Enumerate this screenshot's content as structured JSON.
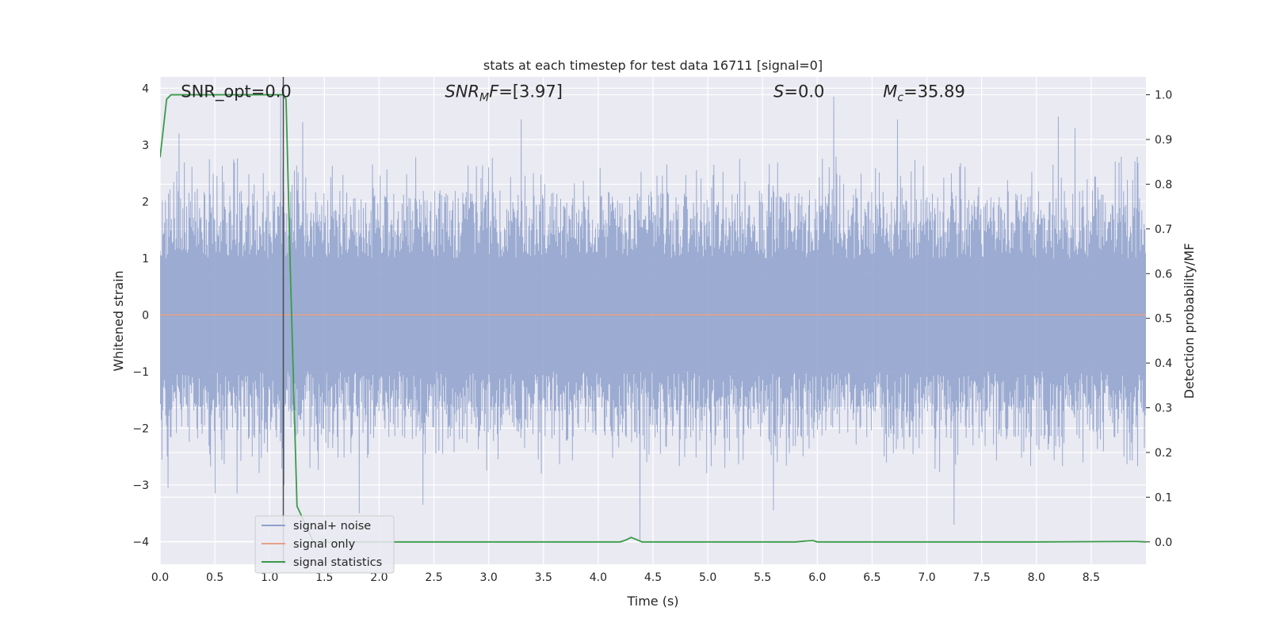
{
  "chart_data": {
    "type": "line",
    "title": "stats at each timestep for test data 16711 [signal=0]",
    "xlabel": "Time (s)",
    "ylabel": "Whitened strain",
    "y2label": "Detection probability/MF",
    "xlim": [
      0,
      9
    ],
    "ylim": [
      -4.4,
      4.2
    ],
    "y2lim": [
      -0.05,
      1.04
    ],
    "xticks": [
      0.0,
      0.5,
      1.0,
      1.5,
      2.0,
      2.5,
      3.0,
      3.5,
      4.0,
      4.5,
      5.0,
      5.5,
      6.0,
      6.5,
      7.0,
      7.5,
      8.0,
      8.5
    ],
    "xtick_labels": [
      "0.0",
      "0.5",
      "1.0",
      "1.5",
      "2.0",
      "2.5",
      "3.0",
      "3.5",
      "4.0",
      "4.5",
      "5.0",
      "5.5",
      "6.0",
      "6.5",
      "7.0",
      "7.5",
      "8.0",
      "8.5"
    ],
    "yticks": [
      -4,
      -3,
      -2,
      -1,
      0,
      1,
      2,
      3,
      4
    ],
    "ytick_labels": [
      "−4",
      "−3",
      "−2",
      "−1",
      "0",
      "1",
      "2",
      "3",
      "4"
    ],
    "y2ticks": [
      0.0,
      0.1,
      0.2,
      0.3,
      0.4,
      0.5,
      0.6,
      0.7,
      0.8,
      0.9,
      1.0
    ],
    "y2tick_labels": [
      "0.0",
      "0.1",
      "0.2",
      "0.3",
      "0.4",
      "0.5",
      "0.6",
      "0.7",
      "0.8",
      "0.9",
      "1.0"
    ],
    "grid": true,
    "legend_position": "lower-left",
    "series": [
      {
        "name": "signal+ noise",
        "axis": "left",
        "color": "#8da0cb",
        "kind": "noise",
        "n_samples": 2600,
        "typical_amplitude": [
          -1.7,
          1.65
        ],
        "peaks": [
          {
            "x": 0.07,
            "y": -3.05
          },
          {
            "x": 0.17,
            "y": 3.2
          },
          {
            "x": 0.5,
            "y": -3.15
          },
          {
            "x": 0.7,
            "y": -3.15
          },
          {
            "x": 1.1,
            "y": 3.9
          },
          {
            "x": 1.13,
            "y": -3.0
          },
          {
            "x": 1.3,
            "y": 3.4
          },
          {
            "x": 1.82,
            "y": -3.5
          },
          {
            "x": 2.4,
            "y": -3.35
          },
          {
            "x": 3.3,
            "y": 3.45
          },
          {
            "x": 4.38,
            "y": -4.0
          },
          {
            "x": 5.6,
            "y": -3.45
          },
          {
            "x": 6.15,
            "y": 3.85
          },
          {
            "x": 6.73,
            "y": 3.45
          },
          {
            "x": 7.25,
            "y": -3.7
          },
          {
            "x": 8.2,
            "y": 3.5
          },
          {
            "x": 8.35,
            "y": 3.3
          },
          {
            "x": 8.8,
            "y": -2.5
          }
        ]
      },
      {
        "name": "signal only",
        "axis": "left",
        "color": "#e5a088",
        "x": [
          0,
          9
        ],
        "y": [
          0,
          0
        ]
      },
      {
        "name": "signal statistics",
        "axis": "right",
        "color": "#3a9b49",
        "x": [
          0.0,
          0.06,
          0.1,
          0.3,
          0.6,
          0.9,
          1.1,
          1.12,
          1.15,
          1.19,
          1.25,
          1.4,
          2.0,
          3.0,
          4.2,
          4.25,
          4.3,
          4.35,
          4.4,
          5.0,
          5.8,
          5.9,
          5.96,
          6.0,
          7.0,
          8.0,
          8.85,
          8.92,
          9.0
        ],
        "y": [
          0.86,
          0.99,
          1.0,
          1.0,
          1.0,
          1.0,
          1.0,
          1.0,
          0.99,
          0.6,
          0.08,
          0.0,
          0.0,
          0.0,
          0.0,
          0.004,
          0.01,
          0.005,
          0.0,
          0.0,
          0.0,
          0.002,
          0.003,
          0.0,
          0.0,
          0.0,
          0.001,
          0.001,
          0.0
        ]
      }
    ],
    "vertical_marker": {
      "x": 1.125,
      "color": "#4c4c4c"
    },
    "annotations": [
      {
        "text": "SNR_opt=0.0",
        "x": 0.19,
        "y": 3.94
      },
      {
        "text": "SNR_MF=[3.97]",
        "x": 2.6,
        "y": 3.94
      },
      {
        "text": "S=0.0",
        "x": 5.6,
        "y": 3.94
      },
      {
        "text": "M_c=35.89",
        "x": 6.6,
        "y": 3.94
      }
    ]
  }
}
